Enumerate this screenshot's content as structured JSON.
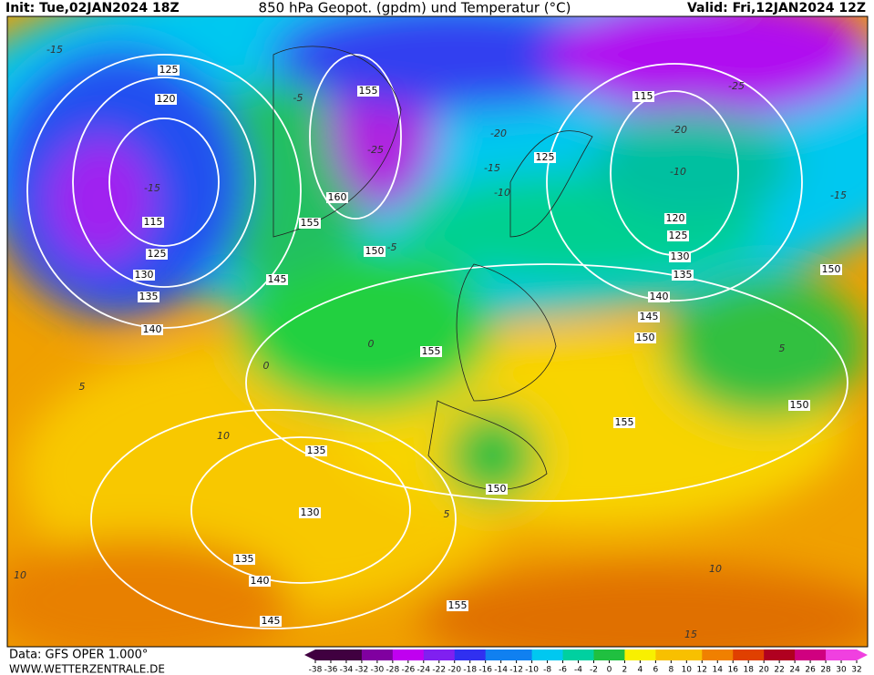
{
  "header": {
    "init": "Init: Tue,02JAN2024 18Z",
    "title": "850 hPa Geopot. (gpdm) und Temperatur (°C)",
    "valid": "Valid: Fri,12JAN2024 12Z"
  },
  "footer": {
    "source": "Data: GFS OPER 1.000°",
    "site": "WWW.WETTERZENTRALE.DE"
  },
  "geopotential_labels": [
    125,
    120,
    115,
    125,
    130,
    135,
    140,
    155,
    160,
    155,
    150,
    145,
    155,
    125,
    115,
    120,
    125,
    130,
    135,
    140,
    145,
    150,
    150,
    150,
    155,
    135,
    130,
    135,
    140,
    145,
    150,
    155
  ],
  "temperature_labels": [
    -15,
    -15,
    -5,
    -25,
    -20,
    -15,
    -10,
    -10,
    -20,
    -25,
    -15,
    0,
    0,
    5,
    10,
    5,
    10,
    15,
    10,
    5,
    -5
  ],
  "legend": {
    "ticks": [
      -38,
      -36,
      -34,
      -32,
      -30,
      -28,
      -26,
      -24,
      -22,
      -20,
      -18,
      -16,
      -14,
      -12,
      -10,
      -8,
      -6,
      -4,
      -2,
      0,
      2,
      4,
      6,
      8,
      10,
      12,
      14,
      16,
      18,
      20,
      22,
      24,
      26,
      28,
      30,
      32
    ]
  }
}
